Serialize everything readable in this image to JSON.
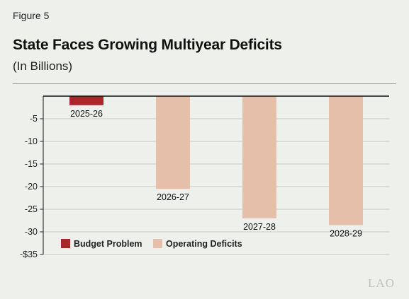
{
  "figure_label": "Figure 5",
  "chart_data": {
    "type": "bar",
    "title": "State Faces Growing Multiyear Deficits",
    "subtitle": "(In Billions)",
    "categories": [
      "2025-26",
      "2026-27",
      "2027-28",
      "2028-29"
    ],
    "series": [
      {
        "name": "Budget Problem",
        "values": [
          -2,
          null,
          null,
          null
        ],
        "color": "#a8282a"
      },
      {
        "name": "Operating Deficits",
        "values": [
          null,
          -20.5,
          -27,
          -28.5
        ],
        "color": "#e5bfa9"
      }
    ],
    "ylim": [
      -35,
      0
    ],
    "yticks": [
      {
        "value": -5,
        "label": "-5"
      },
      {
        "value": -10,
        "label": "-10"
      },
      {
        "value": -15,
        "label": "-15"
      },
      {
        "value": -20,
        "label": "-20"
      },
      {
        "value": -25,
        "label": "-25"
      },
      {
        "value": -30,
        "label": "-30"
      },
      {
        "value": -35,
        "label": "-$35"
      }
    ],
    "grid": true,
    "legend_position": "bottom-left"
  },
  "logo_text": "LAO"
}
